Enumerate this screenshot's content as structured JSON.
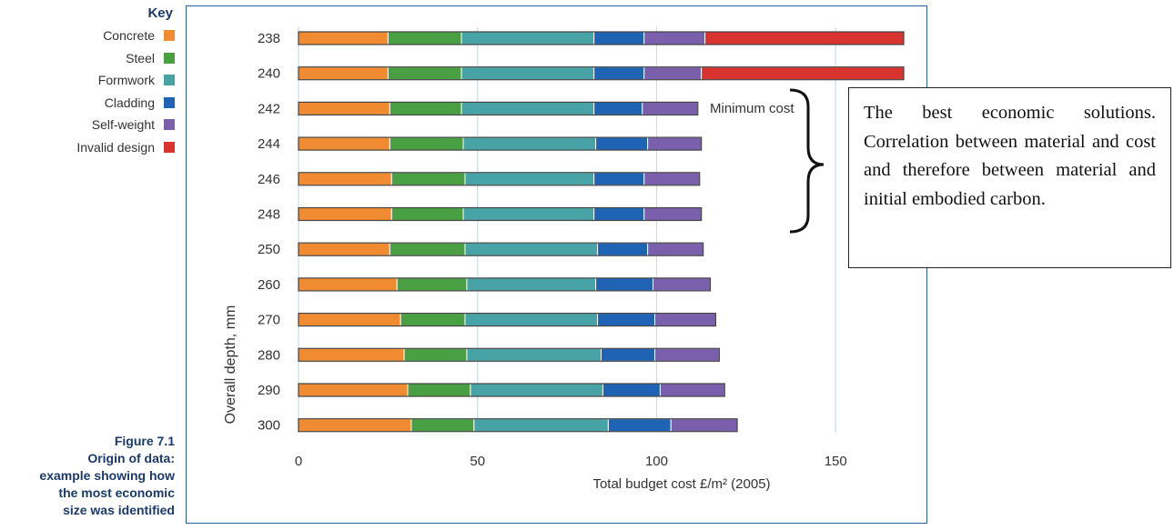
{
  "key": {
    "title": "Key",
    "items": [
      {
        "label": "Concrete",
        "color": "#f08b32"
      },
      {
        "label": "Steel",
        "color": "#48a042"
      },
      {
        "label": "Formwork",
        "color": "#48a3a6"
      },
      {
        "label": "Cladding",
        "color": "#1f64b4"
      },
      {
        "label": "Self-weight",
        "color": "#7a5fac"
      },
      {
        "label": "Invalid design",
        "color": "#d8332f"
      }
    ]
  },
  "caption": {
    "number": "Figure 7.1",
    "lines": [
      "Origin of data:",
      "example showing how",
      "the most economic",
      "size was identified"
    ]
  },
  "annotation": {
    "minimum_cost": "Minimum cost",
    "note": "The best economic solutions. Correlation between material and cost and therefore between material and initial embodied carbon."
  },
  "chart_data": {
    "type": "bar",
    "orientation": "horizontal",
    "stacked": true,
    "xlabel": "Total budget cost £/m² (2005)",
    "ylabel": "Overall depth, mm",
    "xlim": [
      0,
      169
    ],
    "xticks": [
      0,
      50,
      100,
      150
    ],
    "grid": true,
    "legend_position": "left",
    "categories": [
      "238",
      "240",
      "242",
      "244",
      "246",
      "248",
      "250",
      "260",
      "270",
      "280",
      "290",
      "300"
    ],
    "series": [
      {
        "name": "Concrete",
        "color": "#f08b32",
        "values": [
          25,
          25,
          25.5,
          25.5,
          26,
          26,
          25.5,
          27.5,
          28.5,
          29.5,
          30.5,
          31.5
        ]
      },
      {
        "name": "Steel",
        "color": "#48a042",
        "values": [
          20.5,
          20.5,
          20,
          20.5,
          20.5,
          20,
          21,
          19.5,
          18,
          17.5,
          17.5,
          17.5
        ]
      },
      {
        "name": "Formwork",
        "color": "#48a3a6",
        "values": [
          37,
          37,
          37,
          37,
          36,
          36.5,
          37,
          36,
          37,
          37.5,
          37,
          37.5
        ]
      },
      {
        "name": "Cladding",
        "color": "#1f64b4",
        "values": [
          14,
          14,
          13.5,
          14.5,
          14,
          14,
          14,
          16,
          16,
          15,
          16,
          17.5
        ]
      },
      {
        "name": "Self-weight",
        "color": "#7a5fac",
        "values": [
          17,
          16,
          15.5,
          15,
          15.5,
          16,
          15.5,
          16,
          17,
          18,
          18,
          18.5
        ]
      },
      {
        "name": "Invalid design",
        "color": "#d8332f",
        "values": [
          55.5,
          56.5,
          0,
          0,
          0,
          0,
          0,
          0,
          0,
          0,
          0,
          0
        ]
      }
    ]
  }
}
